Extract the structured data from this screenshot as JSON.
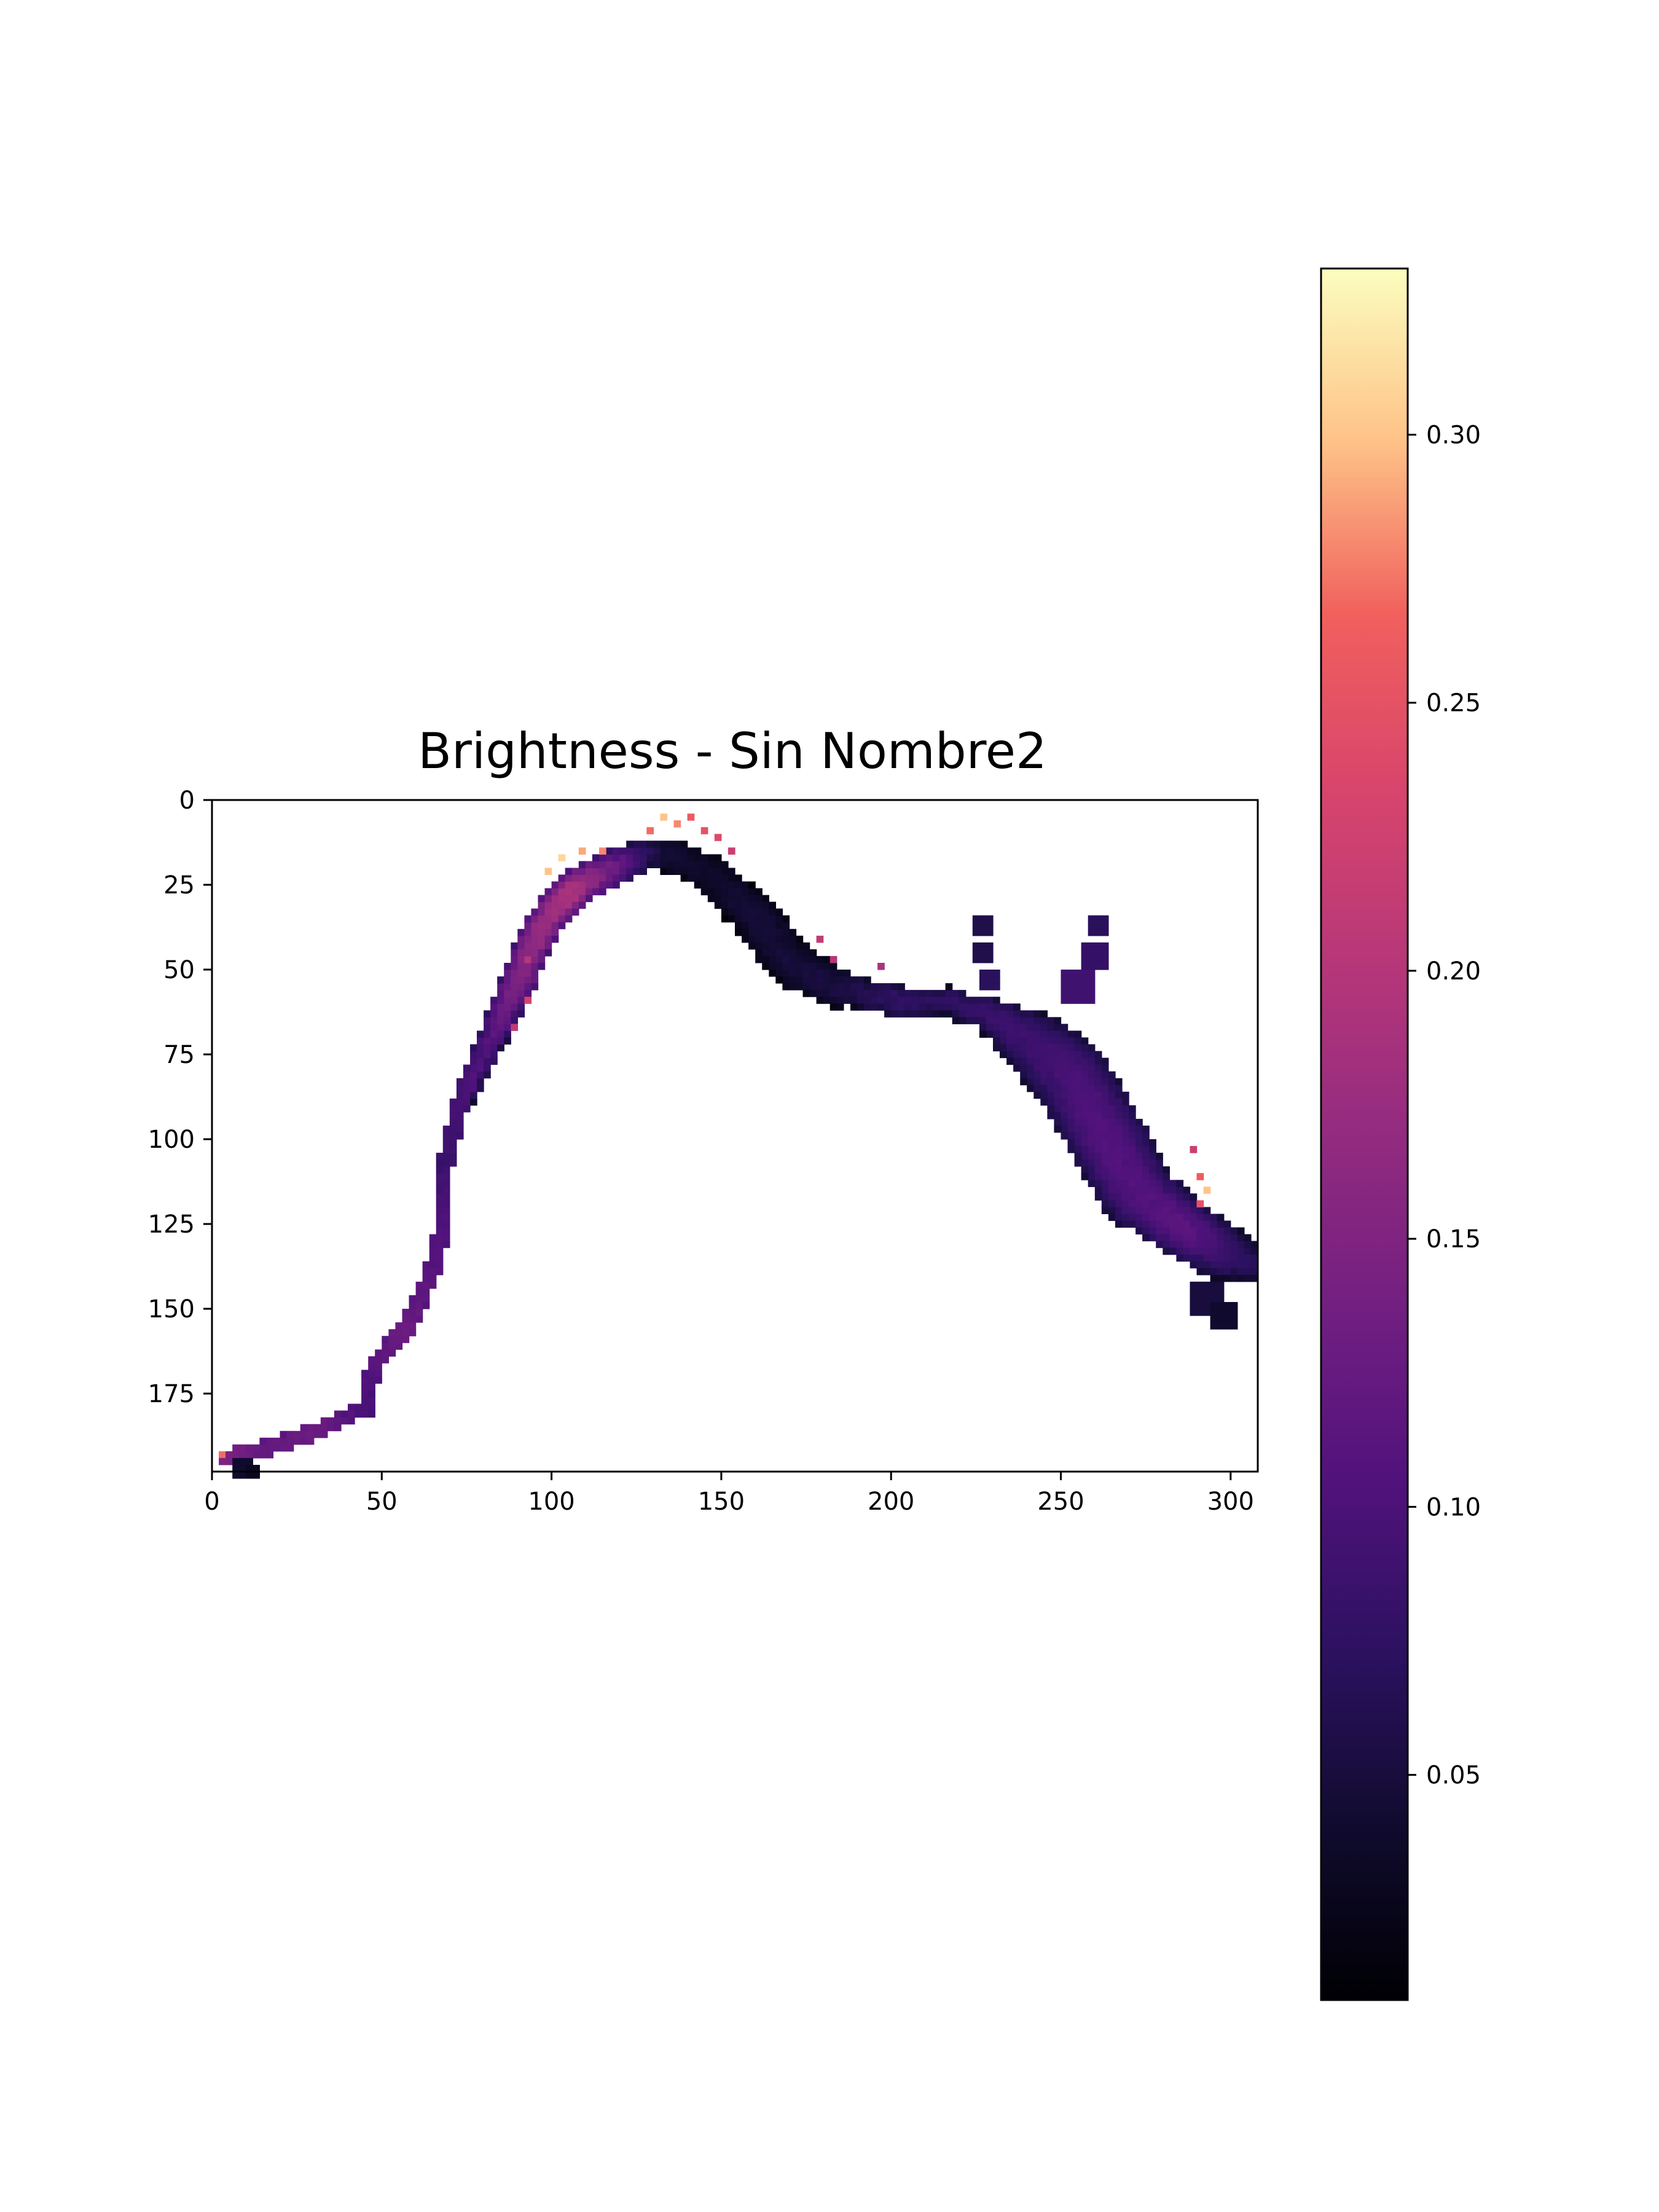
{
  "chart_data": {
    "type": "heatmap",
    "title": "Brightness - Sin Nombre2",
    "xlabel": "",
    "ylabel": "",
    "xlim": [
      0,
      308
    ],
    "ylim": [
      198,
      0
    ],
    "x_ticks": [
      0,
      50,
      100,
      150,
      200,
      250,
      300
    ],
    "y_ticks": [
      0,
      25,
      50,
      75,
      100,
      125,
      150,
      175
    ],
    "colormap": "magma",
    "colorbar": {
      "range": [
        0.008,
        0.331
      ],
      "ticks": [
        0.05,
        0.1,
        0.15,
        0.2,
        0.25,
        0.3
      ],
      "tick_labels": [
        "0.05",
        "0.10",
        "0.15",
        "0.20",
        "0.25",
        "0.30"
      ]
    },
    "grid": false,
    "centerline": [
      [
        2,
        193,
        3,
        0.16
      ],
      [
        15,
        190,
        3,
        0.13
      ],
      [
        30,
        185,
        3,
        0.14
      ],
      [
        44,
        178,
        3,
        0.1
      ],
      [
        47,
        165,
        3,
        0.12
      ],
      [
        56,
        155,
        3,
        0.14
      ],
      [
        63,
        140,
        3,
        0.12
      ],
      [
        67,
        125,
        3,
        0.11
      ],
      [
        68,
        105,
        3,
        0.09
      ],
      [
        72,
        88,
        3,
        0.1
      ],
      [
        80,
        72,
        4,
        0.1
      ],
      [
        88,
        55,
        5,
        0.14
      ],
      [
        95,
        38,
        5,
        0.17
      ],
      [
        105,
        25,
        5,
        0.19
      ],
      [
        118,
        18,
        5,
        0.12
      ],
      [
        130,
        14,
        5,
        0.04
      ],
      [
        145,
        20,
        5,
        0.03
      ],
      [
        158,
        32,
        6,
        0.04
      ],
      [
        170,
        48,
        6,
        0.04
      ],
      [
        185,
        55,
        5,
        0.05
      ],
      [
        200,
        58,
        5,
        0.07
      ],
      [
        215,
        58,
        4,
        0.07
      ],
      [
        228,
        62,
        5,
        0.08
      ],
      [
        240,
        70,
        9,
        0.08
      ],
      [
        252,
        80,
        11,
        0.09
      ],
      [
        262,
        98,
        11,
        0.1
      ],
      [
        272,
        115,
        10,
        0.1
      ],
      [
        285,
        125,
        8,
        0.11
      ],
      [
        296,
        132,
        8,
        0.08
      ],
      [
        306,
        136,
        4,
        0.06
      ]
    ],
    "bright_spots": [
      [
        98,
        20,
        0.3
      ],
      [
        102,
        16,
        0.31
      ],
      [
        108,
        14,
        0.29
      ],
      [
        113,
        13,
        0.28
      ],
      [
        128,
        8,
        0.27
      ],
      [
        131,
        3,
        0.3
      ],
      [
        135,
        6,
        0.28
      ],
      [
        140,
        4,
        0.26
      ],
      [
        144,
        7,
        0.25
      ],
      [
        148,
        9,
        0.24
      ],
      [
        152,
        13,
        0.22
      ],
      [
        178,
        40,
        0.21
      ],
      [
        182,
        45,
        0.2
      ],
      [
        195,
        47,
        0.19
      ],
      [
        288,
        102,
        0.22
      ],
      [
        290,
        110,
        0.26
      ],
      [
        292,
        114,
        0.3
      ],
      [
        290,
        118,
        0.25
      ],
      [
        1,
        192,
        0.27
      ],
      [
        91,
        45,
        0.2
      ],
      [
        92,
        58,
        0.23
      ],
      [
        88,
        66,
        0.21
      ]
    ],
    "spurs": [
      [
        226,
        36,
        2,
        0.06
      ],
      [
        226,
        44,
        2,
        0.06
      ],
      [
        227,
        52,
        2,
        0.07
      ],
      [
        260,
        36,
        2,
        0.07
      ],
      [
        258,
        44,
        3,
        0.08
      ],
      [
        254,
        54,
        4,
        0.09
      ],
      [
        292,
        145,
        4,
        0.05
      ],
      [
        296,
        150,
        3,
        0.04
      ],
      [
        8,
        196,
        2,
        0.04
      ],
      [
        11,
        197,
        1,
        0.03
      ]
    ]
  }
}
